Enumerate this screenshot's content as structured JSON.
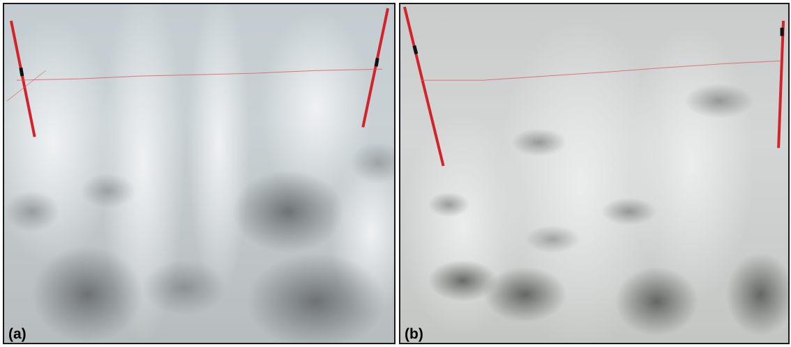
{
  "panels": [
    {
      "label": "(a)",
      "description_colors": {
        "ice": "#cdd5d8",
        "haze": "#bfc9cc",
        "debris": "#4a4d4f",
        "pole": "#d2232a"
      }
    },
    {
      "label": "(b)",
      "description_colors": {
        "ice": "#d9dcdc",
        "haze": "#c8cccc",
        "debris": "#3e403f",
        "pole": "#d2232a"
      }
    }
  ]
}
